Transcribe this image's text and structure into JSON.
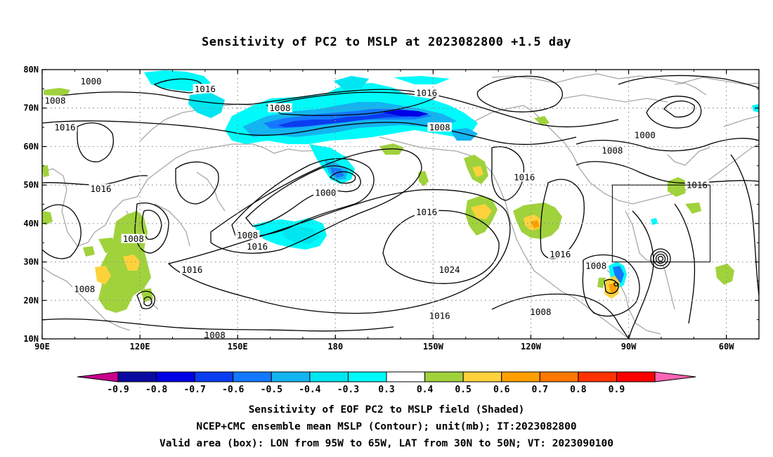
{
  "title": "Sensitivity of PC2 to MSLP at 2023082800 +1.5 day",
  "lat_labels": [
    "80N",
    "70N",
    "60N",
    "50N",
    "40N",
    "30N",
    "20N",
    "10N"
  ],
  "lon_labels": [
    "90E",
    "120E",
    "150E",
    "180",
    "150W",
    "120W",
    "90W",
    "60W"
  ],
  "colorbar": {
    "colors": [
      "#c8008c",
      "#0a0aa0",
      "#0000e6",
      "#0a3cf0",
      "#1478ff",
      "#14b4f0",
      "#00e6f0",
      "#00fafa",
      "#ffffff",
      "#a0d23c",
      "#ffd23c",
      "#ffa000",
      "#ff7800",
      "#ff3200",
      "#fa0000",
      "#ff64b4"
    ],
    "labels": [
      "-0.9",
      "-0.8",
      "-0.7",
      "-0.6",
      "-0.5",
      "-0.4",
      "-0.3",
      "0.3",
      "0.4",
      "0.5",
      "0.6",
      "0.7",
      "0.8",
      "0.9"
    ]
  },
  "contour_labels": [
    {
      "text": "1000",
      "lon": 105,
      "lat": 77
    },
    {
      "text": "1008",
      "lon": 94,
      "lat": 72
    },
    {
      "text": "1016",
      "lon": 140,
      "lat": 75
    },
    {
      "text": "1016",
      "lon": -152,
      "lat": 74
    },
    {
      "text": "1008",
      "lon": 163,
      "lat": 70
    },
    {
      "text": "1016",
      "lon": 97,
      "lat": 65
    },
    {
      "text": "1008",
      "lon": -148,
      "lat": 65
    },
    {
      "text": "1000",
      "lon": -85,
      "lat": 63
    },
    {
      "text": "1008",
      "lon": -95,
      "lat": 59
    },
    {
      "text": "1016",
      "lon": -122,
      "lat": 52
    },
    {
      "text": "1000",
      "lon": 177,
      "lat": 48
    },
    {
      "text": "1016",
      "lon": -69,
      "lat": 50
    },
    {
      "text": "1016",
      "lon": 108,
      "lat": 49
    },
    {
      "text": "1016",
      "lon": -152,
      "lat": 43
    },
    {
      "text": "1008",
      "lon": 153,
      "lat": 37
    },
    {
      "text": "1008",
      "lon": 118,
      "lat": 36
    },
    {
      "text": "1016",
      "lon": 156,
      "lat": 34
    },
    {
      "text": "1016",
      "lon": -111,
      "lat": 32
    },
    {
      "text": "1016",
      "lon": 136,
      "lat": 28
    },
    {
      "text": "1024",
      "lon": -145,
      "lat": 28
    },
    {
      "text": "1008",
      "lon": -100,
      "lat": 29
    },
    {
      "text": "1008",
      "lon": 103,
      "lat": 23
    },
    {
      "text": "1008",
      "lon": -117,
      "lat": 17
    },
    {
      "text": "1016",
      "lon": -148,
      "lat": 16
    },
    {
      "text": "1008",
      "lon": 143,
      "lat": 11
    }
  ],
  "valid_box": {
    "lon_w": -95,
    "lon_e": -65,
    "lat_s": 30,
    "lat_n": 50
  },
  "caption": {
    "line1": "Sensitivity of EOF PC2 to MSLP field (Shaded)",
    "line2": "NCEP+CMC ensemble mean MSLP (Contour); unit(mb); IT:2023082800",
    "line3": "Valid area (box): LON from 95W to 65W, LAT from 30N to 50N; VT: 2023090100"
  }
}
